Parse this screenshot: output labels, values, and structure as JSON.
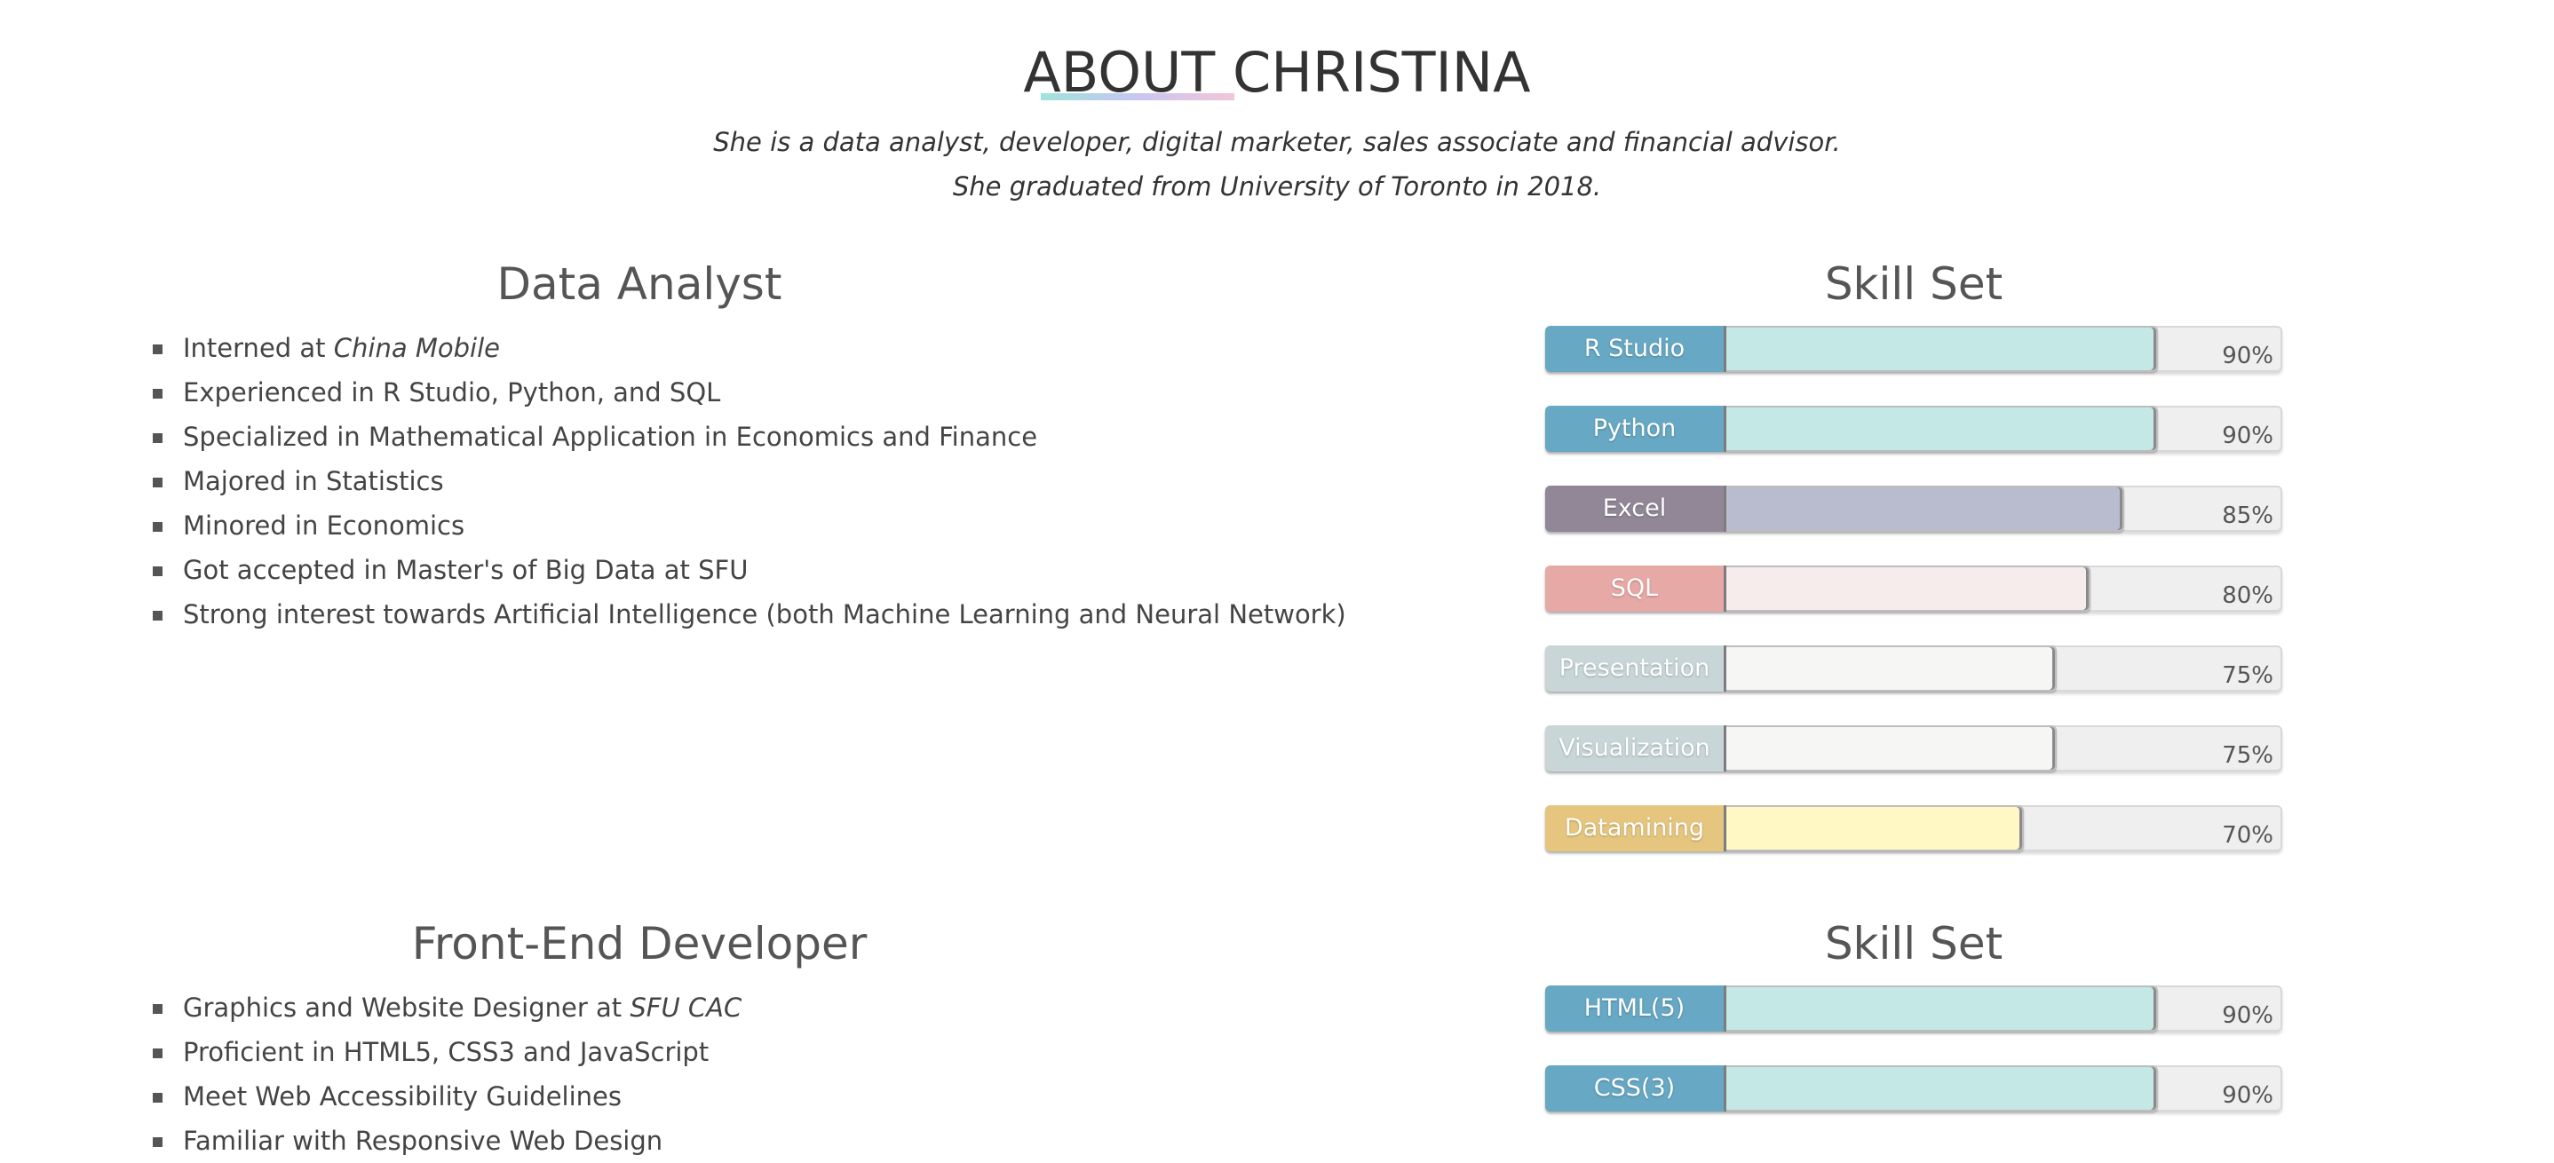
{
  "title": "ABOUT CHRISTINA",
  "intro": {
    "line1": "She is a data analyst, developer, digital marketer, sales associate and financial advisor.",
    "line2": "She graduated from University of Toronto in 2018."
  },
  "sections": [
    {
      "heading": "Data Analyst",
      "items": [
        {
          "text": "Interned at ",
          "emph": "China Mobile"
        },
        {
          "text": "Experienced in R Studio, Python, and SQL",
          "emph": ""
        },
        {
          "text": "Specialized in Mathematical Application in Economics and Finance",
          "emph": ""
        },
        {
          "text": "Majored in Statistics",
          "emph": ""
        },
        {
          "text": "Minored in Economics",
          "emph": ""
        },
        {
          "text": "Got accepted in Master's of Big Data at SFU",
          "emph": ""
        },
        {
          "text": "Strong interest towards Artificial Intelligence (both Machine Learning and Neural Network)",
          "emph": ""
        }
      ],
      "skills_heading": "Skill Set",
      "skills": [
        {
          "name": "R Studio",
          "level": 90,
          "pct_label": "90%",
          "label_color": "#67a8c4",
          "fill_color": "#c3e8e5"
        },
        {
          "name": "Python",
          "level": 90,
          "pct_label": "90%",
          "label_color": "#67a8c4",
          "fill_color": "#c3e8e5"
        },
        {
          "name": "Excel",
          "level": 85,
          "pct_label": "85%",
          "label_color": "#928796",
          "fill_color": "#b9bccf"
        },
        {
          "name": "SQL",
          "level": 80,
          "pct_label": "80%",
          "label_color": "#e7a9a6",
          "fill_color": "#f6ecec"
        },
        {
          "name": "Presentation",
          "level": 75,
          "pct_label": "75%",
          "label_color": "#c8d6d7",
          "fill_color": "#f6f7f5"
        },
        {
          "name": "Visualization",
          "level": 75,
          "pct_label": "75%",
          "label_color": "#c8d6d7",
          "fill_color": "#f6f7f5"
        },
        {
          "name": "Datamining",
          "level": 70,
          "pct_label": "70%",
          "label_color": "#e6c67e",
          "fill_color": "#fff8c4"
        }
      ]
    },
    {
      "heading": "Front-End Developer",
      "items": [
        {
          "text": "Graphics and Website Designer at ",
          "emph": "SFU CAC"
        },
        {
          "text": "Proficient in HTML5, CSS3 and JavaScript",
          "emph": ""
        },
        {
          "text": "Meet Web Accessibility Guidelines",
          "emph": ""
        },
        {
          "text": "Familiar with Responsive Web Design",
          "emph": ""
        }
      ],
      "skills_heading": "Skill Set",
      "skills": [
        {
          "name": "HTML(5)",
          "level": 90,
          "pct_label": "90%",
          "label_color": "#67a8c4",
          "fill_color": "#c3e8e5"
        },
        {
          "name": "CSS(3)",
          "level": 90,
          "pct_label": "90%",
          "label_color": "#67a8c4",
          "fill_color": "#c3e8e5"
        }
      ]
    }
  ],
  "colors": {
    "underline_gradient": [
      "#9fe3dc",
      "#c8c6f2",
      "#f2c6d8"
    ]
  }
}
